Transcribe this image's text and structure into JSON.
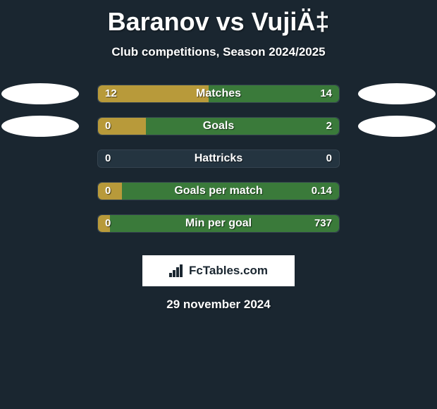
{
  "title": "Baranov vs VujiÄ‡",
  "subtitle": "Club competitions, Season 2024/2025",
  "date": "29 november 2024",
  "logo_text": "FcTables.com",
  "colors": {
    "background": "#1a2630",
    "left_fill": "#b89a3a",
    "right_fill": "#3a7a3a",
    "bar_bg": "#243440",
    "text": "#ffffff",
    "ellipse": "#ffffff"
  },
  "rows": [
    {
      "label": "Matches",
      "left_value": "12",
      "right_value": "14",
      "left_pct": 46,
      "right_pct": 54,
      "left_ellipse": true,
      "right_ellipse": true
    },
    {
      "label": "Goals",
      "left_value": "0",
      "right_value": "2",
      "left_pct": 20,
      "right_pct": 80,
      "left_ellipse": true,
      "right_ellipse": true
    },
    {
      "label": "Hattricks",
      "left_value": "0",
      "right_value": "0",
      "left_pct": 0,
      "right_pct": 0,
      "left_ellipse": false,
      "right_ellipse": false
    },
    {
      "label": "Goals per match",
      "left_value": "0",
      "right_value": "0.14",
      "left_pct": 10,
      "right_pct": 90,
      "left_ellipse": false,
      "right_ellipse": false
    },
    {
      "label": "Min per goal",
      "left_value": "0",
      "right_value": "737",
      "left_pct": 5,
      "right_pct": 95,
      "left_ellipse": false,
      "right_ellipse": false
    }
  ]
}
